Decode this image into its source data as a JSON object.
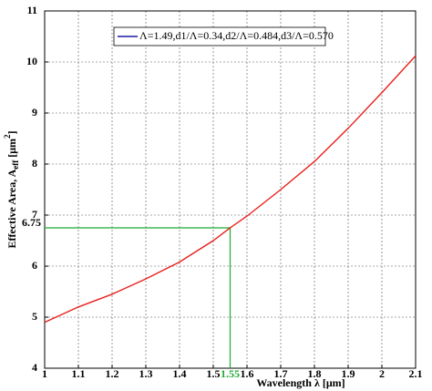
{
  "chart_data": {
    "type": "line",
    "xlabel": "Wavelength λ [μm]",
    "ylabel": [
      "Effective Area, A",
      "eff",
      " [μm",
      "2",
      "]"
    ],
    "x": [
      1.0,
      1.1,
      1.2,
      1.3,
      1.4,
      1.5,
      1.55,
      1.6,
      1.7,
      1.8,
      1.9,
      2.0,
      2.1
    ],
    "series": [
      {
        "name": "Λ=1.49,d1/Λ=0.34,d2/Λ=0.484,d3/Λ=0.570",
        "color": "#e8201c",
        "values": [
          4.9,
          5.2,
          5.45,
          5.75,
          6.08,
          6.5,
          6.75,
          6.98,
          7.5,
          8.05,
          8.7,
          9.4,
          10.12
        ]
      }
    ],
    "legend_line_color": "#1a1aa0",
    "xlim": [
      1,
      2.1
    ],
    "xticks": [
      1,
      1.1,
      1.2,
      1.3,
      1.4,
      1.5,
      1.6,
      1.7,
      1.8,
      1.9,
      2,
      2.1
    ],
    "ylim": [
      4,
      11
    ],
    "yticks": [
      4,
      5,
      6,
      7,
      8,
      9,
      10,
      11
    ],
    "grid": true,
    "annotation": {
      "x": 1.55,
      "y": 6.75,
      "color": "#22aa33"
    }
  }
}
